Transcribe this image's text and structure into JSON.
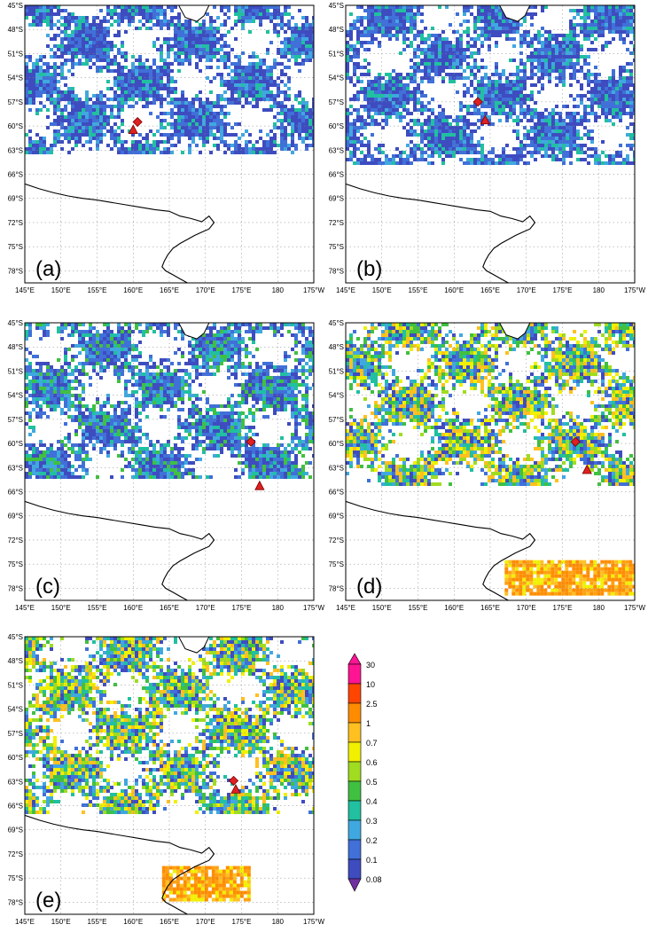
{
  "latitude_labels": [
    "45°S",
    "48°S",
    "51°S",
    "54°S",
    "57°S",
    "60°S",
    "63°S",
    "66°S",
    "69°S",
    "72°S",
    "75°S",
    "78°S"
  ],
  "longitude_labels": [
    "145°E",
    "150°E",
    "155°E",
    "160°E",
    "165°E",
    "170°E",
    "175°E",
    "180",
    "175°W"
  ],
  "panels": [
    {
      "label": "(a)",
      "diamond": [
        160.6,
        -59.5
      ],
      "triangle": [
        160.0,
        -60.5
      ],
      "ice_edge_lat": -63.5,
      "pattern": "low"
    },
    {
      "label": "(b)",
      "diamond": [
        163.3,
        -57.0
      ],
      "triangle": [
        164.3,
        -59.3
      ],
      "ice_edge_lat": -64.5,
      "pattern": "low"
    },
    {
      "label": "(c)",
      "diamond": [
        176.3,
        -59.8
      ],
      "triangle": [
        177.5,
        -65.3
      ],
      "ice_edge_lat": -64.0,
      "pattern": "mid"
    },
    {
      "label": "(d)",
      "diamond": [
        176.8,
        -59.8
      ],
      "triangle": [
        178.4,
        -63.3
      ],
      "ice_edge_lat": -65.0,
      "pattern": "high"
    },
    {
      "label": "(e)",
      "diamond": [
        173.9,
        -62.9
      ],
      "triangle": [
        174.2,
        -64.0
      ],
      "ice_edge_lat": -67.0,
      "pattern": "high"
    }
  ],
  "colorbar": {
    "labels": [
      "30",
      "10",
      "2.5",
      "1",
      "0.7",
      "0.6",
      "0.5",
      "0.4",
      "0.3",
      "0.2",
      "0.1",
      "0.08"
    ],
    "colors": [
      "#ff1493",
      "#ff4500",
      "#ff8c00",
      "#ffc020",
      "#f0f000",
      "#a0dc20",
      "#40c040",
      "#20c0a0",
      "#40a8e0",
      "#4070d8",
      "#3e4cc0",
      "#7030a0"
    ]
  },
  "marker_colors": {
    "diamond": "#e02020",
    "triangle": "#e02020"
  }
}
